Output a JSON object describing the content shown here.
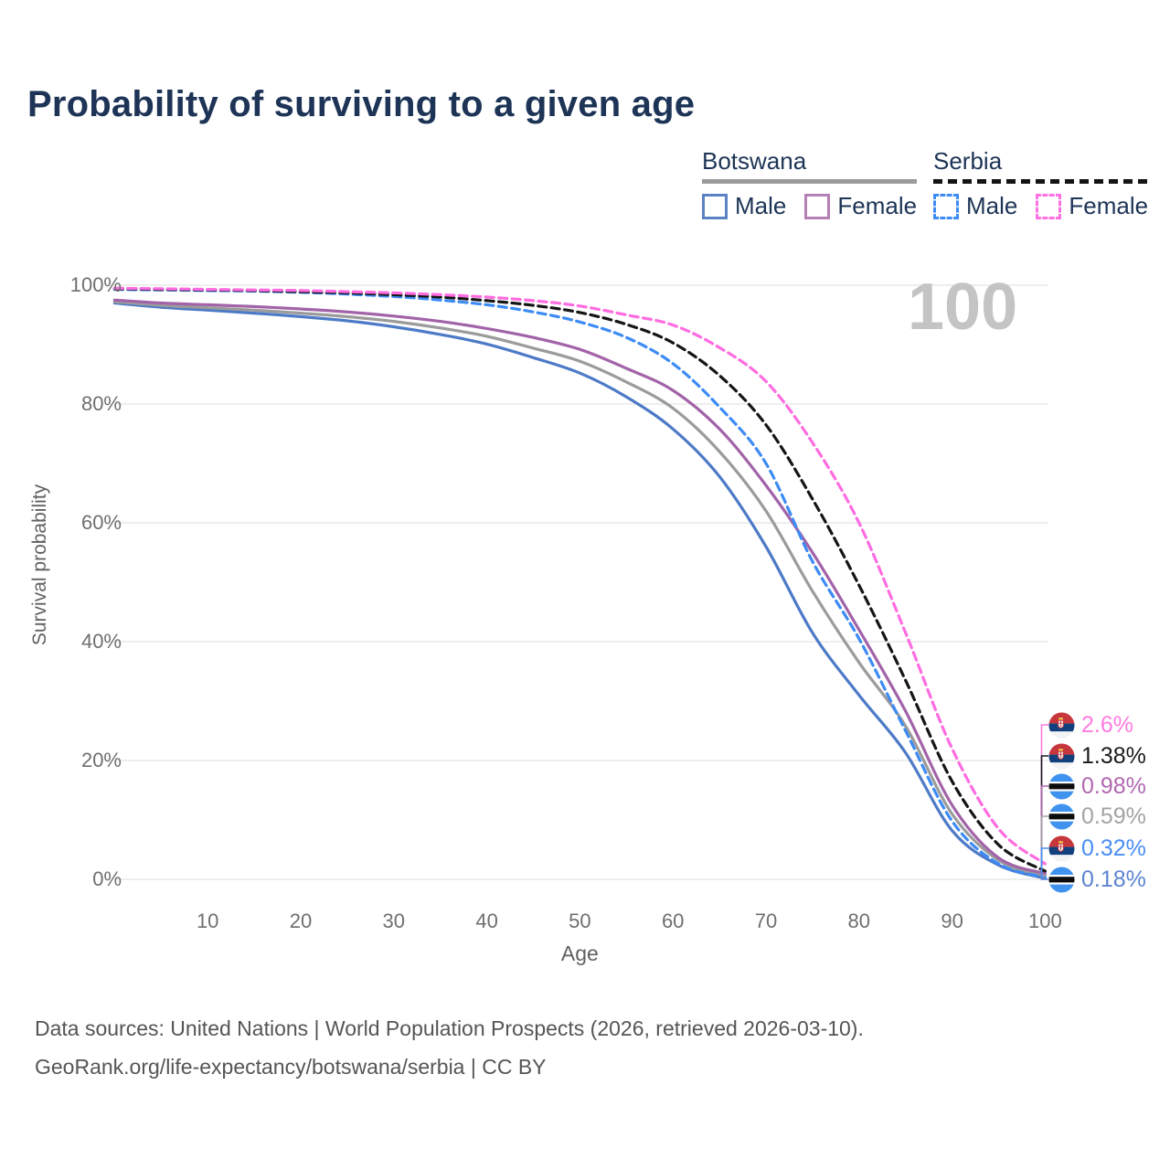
{
  "header": {
    "title": "Probability of surviving to a given age",
    "title_color": "#1d3456"
  },
  "watermark": "100",
  "legend": {
    "groups": [
      {
        "name": "Botswana",
        "line_style": "solid",
        "line_color": "#9b9b9b",
        "items": [
          {
            "label": "Male",
            "color": "#5b82c4",
            "style": "solid"
          },
          {
            "label": "Female",
            "color": "#b57fb4",
            "style": "solid"
          }
        ]
      },
      {
        "name": "Serbia",
        "line_style": "dashed",
        "line_color": "#141414",
        "items": [
          {
            "label": "Male",
            "color": "#3d8bf5",
            "style": "dashed"
          },
          {
            "label": "Female",
            "color": "#ff70e2",
            "style": "dashed"
          }
        ]
      }
    ]
  },
  "chart_data": {
    "type": "line",
    "xlabel": "Age",
    "ylabel": "Survival probability",
    "xlim": [
      0,
      100
    ],
    "ylim": [
      0,
      100
    ],
    "grid": "horizontal-only",
    "x_ticks": [
      10,
      20,
      30,
      40,
      50,
      60,
      70,
      80,
      90,
      100
    ],
    "y_ticks": [
      "0%",
      "20%",
      "40%",
      "60%",
      "80%",
      "100%"
    ],
    "ages": [
      0,
      5,
      10,
      15,
      20,
      25,
      30,
      35,
      40,
      45,
      50,
      55,
      60,
      65,
      70,
      75,
      80,
      85,
      90,
      95,
      100
    ],
    "series": [
      {
        "id": "botswana-male",
        "country": "Botswana",
        "sex": "Male",
        "style": "solid",
        "color": "#4d7ac7",
        "values": [
          97.0,
          96.3,
          95.8,
          95.3,
          94.7,
          94.0,
          93.0,
          91.7,
          90.1,
          87.8,
          85.2,
          81.2,
          75.8,
          67.8,
          56.0,
          41.5,
          31.0,
          21.3,
          8.2,
          2.4,
          0.18
        ]
      },
      {
        "id": "botswana-all",
        "country": "Botswana",
        "sex": "Both sexes",
        "style": "solid",
        "color": "#9b9b9b",
        "values": [
          97.2,
          96.6,
          96.2,
          95.8,
          95.3,
          94.7,
          93.9,
          92.8,
          91.4,
          89.4,
          87.2,
          83.7,
          79.3,
          72.0,
          62.0,
          48.5,
          36.5,
          25.8,
          11.0,
          3.2,
          0.59
        ]
      },
      {
        "id": "botswana-female",
        "country": "Botswana",
        "sex": "Female",
        "style": "solid",
        "color": "#a263a8",
        "values": [
          97.5,
          97.0,
          96.7,
          96.4,
          96.0,
          95.5,
          94.8,
          93.9,
          92.7,
          91.2,
          89.2,
          86.0,
          82.3,
          75.8,
          66.3,
          55.0,
          42.0,
          28.3,
          12.5,
          3.6,
          0.98
        ]
      },
      {
        "id": "serbia-male",
        "country": "Serbia",
        "sex": "Male",
        "style": "dashed",
        "color": "#3d8bf5",
        "values": [
          99.3,
          99.2,
          99.1,
          99.0,
          98.8,
          98.5,
          98.1,
          97.5,
          96.7,
          95.5,
          93.8,
          91.2,
          86.8,
          79.5,
          70.0,
          53.5,
          40.5,
          25.0,
          9.8,
          2.6,
          0.32
        ]
      },
      {
        "id": "serbia-all",
        "country": "Serbia",
        "sex": "Both sexes",
        "style": "dashed",
        "color": "#151515",
        "values": [
          99.4,
          99.3,
          99.2,
          99.1,
          98.9,
          98.7,
          98.4,
          98.0,
          97.4,
          96.6,
          95.4,
          93.4,
          90.3,
          84.8,
          76.5,
          64.0,
          49.5,
          33.5,
          16.5,
          5.8,
          1.38
        ]
      },
      {
        "id": "serbia-female",
        "country": "Serbia",
        "sex": "Female",
        "style": "dashed",
        "color": "#ff6ce1",
        "values": [
          99.5,
          99.4,
          99.3,
          99.2,
          99.1,
          98.9,
          98.7,
          98.4,
          98.0,
          97.4,
          96.5,
          95.0,
          93.3,
          89.5,
          83.8,
          73.5,
          60.0,
          41.5,
          22.0,
          8.5,
          2.6
        ]
      }
    ],
    "end_labels": [
      {
        "label": "2.6%",
        "value": 2.6,
        "color": "#ff7ce0",
        "flag": "serbia-flag-icon",
        "series": "serbia-female"
      },
      {
        "label": "1.38%",
        "value": 1.38,
        "color": "#1a1a1a",
        "flag": "serbia-flag-icon",
        "series": "serbia-all"
      },
      {
        "label": "0.98%",
        "value": 0.98,
        "color": "#b167b1",
        "flag": "botswana-flag-icon",
        "series": "botswana-female"
      },
      {
        "label": "0.59%",
        "value": 0.59,
        "color": "#a3a3a3",
        "flag": "botswana-flag-icon",
        "series": "botswana-all"
      },
      {
        "label": "0.32%",
        "value": 0.32,
        "color": "#4a8cf5",
        "flag": "serbia-flag-icon",
        "series": "serbia-male"
      },
      {
        "label": "0.18%",
        "value": 0.18,
        "color": "#5d84d2",
        "flag": "botswana-flag-icon",
        "series": "botswana-male"
      }
    ]
  },
  "footer": {
    "line1": "Data sources: United Nations | World Population Prospects (2026, retrieved 2026-03-10).",
    "line2": "GeoRank.org/life-expectancy/botswana/serbia | CC BY"
  },
  "flag_colors": {
    "serbia": {
      "red": "#c7363d",
      "blue": "#12407c",
      "white": "#f3f3f6",
      "crown": "#e8c24c"
    },
    "botswana": {
      "blue": "#3f93ee",
      "black": "#0c0c0c",
      "white": "#ffffff"
    }
  }
}
